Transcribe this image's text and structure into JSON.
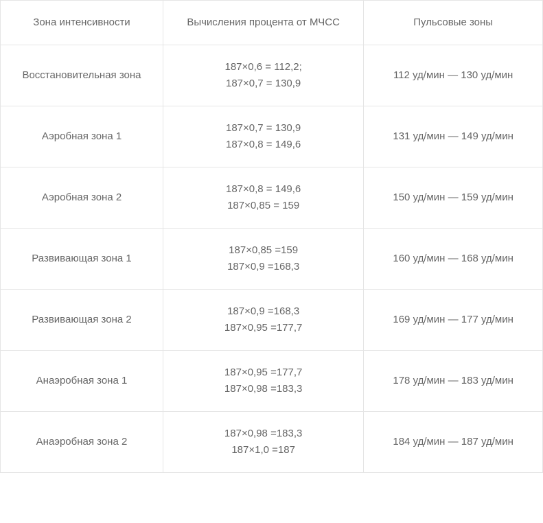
{
  "table": {
    "columns": [
      "Зона интенсивности",
      "Вычисления процента от МЧСС",
      "Пульсовые зоны"
    ],
    "rows": [
      {
        "zone": "Восстановительная зона",
        "calc": "187×0,6 = 112,2;\n187×0,7 = 130,9",
        "pulse": "112 уд/мин — 130 уд/мин"
      },
      {
        "zone": "Аэробная зона 1",
        "calc": "187×0,7 = 130,9\n187×0,8 = 149,6",
        "pulse": "131 уд/мин — 149 уд/мин"
      },
      {
        "zone": "Аэробная зона 2",
        "calc": "187×0,8 = 149,6\n187×0,85 = 159",
        "pulse": "150 уд/мин — 159 уд/мин"
      },
      {
        "zone": "Развивающая зона 1",
        "calc": "187×0,85 =159\n187×0,9 =168,3",
        "pulse": "160 уд/мин — 168 уд/мин"
      },
      {
        "zone": "Развивающая зона 2",
        "calc": "187×0,9 =168,3\n187×0,95 =177,7",
        "pulse": "169 уд/мин — 177 уд/мин"
      },
      {
        "zone": "Анаэробная зона 1",
        "calc": "187×0,95 =177,7\n187×0,98 =183,3",
        "pulse": "178 уд/мин — 183 уд/мин"
      },
      {
        "zone": "Анаэробная зона 2",
        "calc": "187×0,98 =183,3\n187×1,0 =187",
        "pulse": "184 уд/мин — 187 уд/мин"
      }
    ],
    "styling": {
      "border_color": "#e5e5e5",
      "text_color": "#666666",
      "background_color": "#ffffff",
      "font_size": 15,
      "cell_padding_v": 20,
      "cell_padding_h": 16,
      "column_widths_pct": [
        30,
        37,
        33
      ],
      "line_height": 1.6
    }
  }
}
